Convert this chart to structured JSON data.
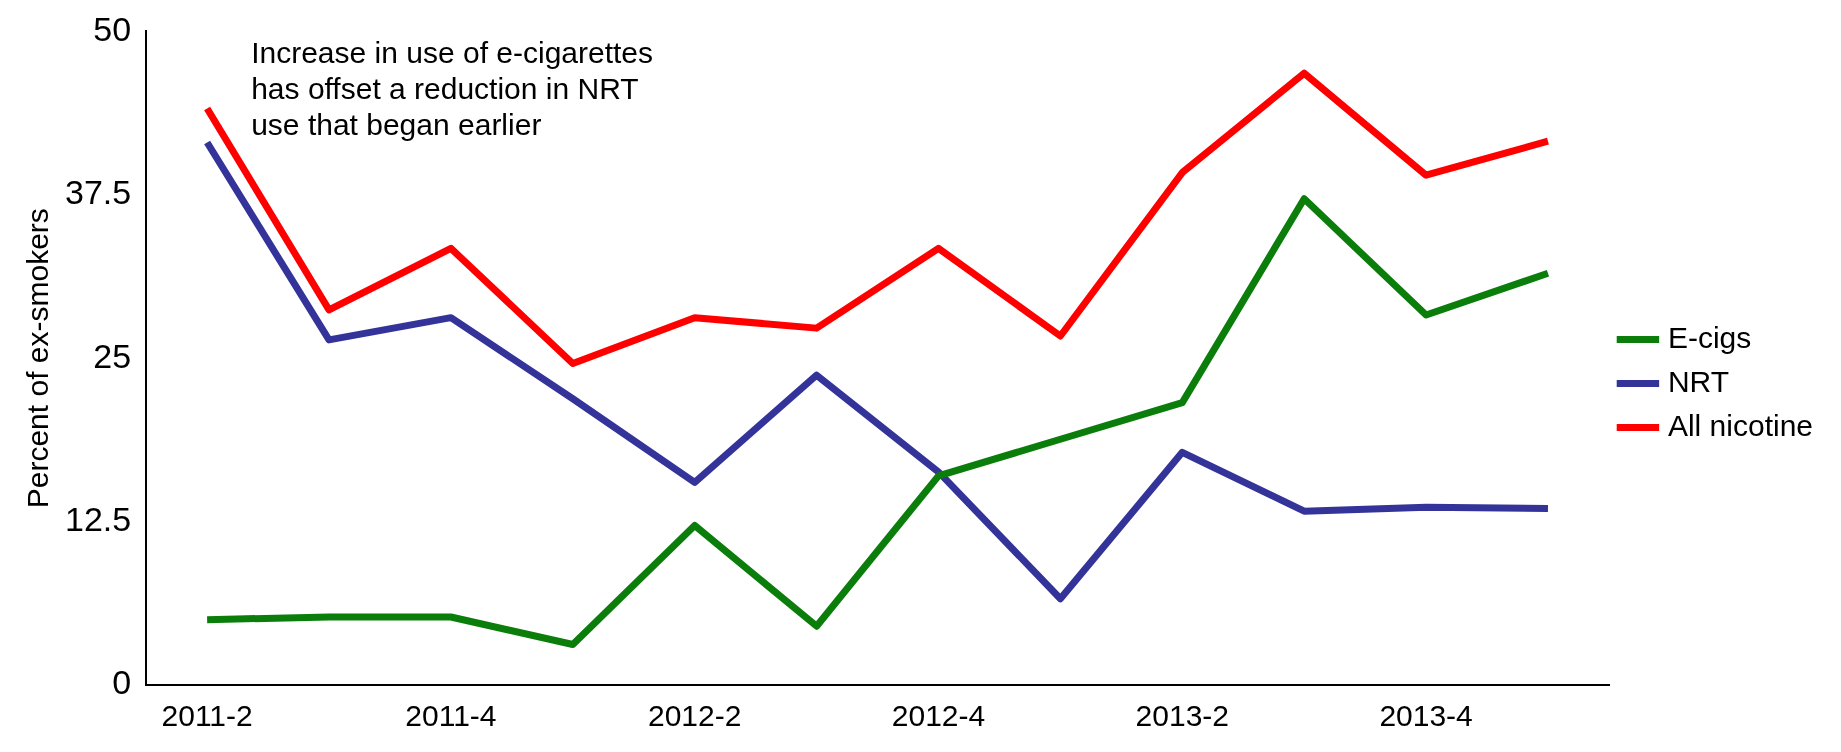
{
  "chart_data": {
    "type": "line",
    "ylabel": "Percent of ex-smokers",
    "categories": [
      "2011-2",
      null,
      "2011-4",
      null,
      "2012-2",
      null,
      "2012-4",
      null,
      "2013-2",
      null,
      "2013-4",
      null
    ],
    "series": [
      {
        "name": "E-cigs",
        "color": "#0a7d0a",
        "values": [
          5.0,
          5.2,
          5.2,
          3.1,
          12.2,
          4.5,
          16.0,
          18.8,
          21.6,
          37.2,
          28.3,
          31.5
        ]
      },
      {
        "name": "NRT",
        "color": "#33339a",
        "values": [
          41.5,
          26.4,
          28.1,
          21.9,
          15.5,
          23.7,
          16.3,
          6.6,
          17.8,
          13.3,
          13.6,
          13.5
        ]
      },
      {
        "name": "All nicotine",
        "color": "#ff0000",
        "values": [
          44.1,
          28.7,
          33.4,
          24.6,
          28.1,
          27.3,
          33.4,
          26.7,
          39.2,
          46.8,
          39.0,
          41.6
        ]
      }
    ],
    "ylim": [
      0,
      50
    ],
    "yticks": [
      0,
      12.5,
      25,
      37.5,
      50
    ],
    "grid": false,
    "legend": "right",
    "marker": "none",
    "line_style": "solid",
    "annotations": [
      "Increase in use of e-cigarettes has offset a reduction in NRT use that began earlier"
    ]
  }
}
